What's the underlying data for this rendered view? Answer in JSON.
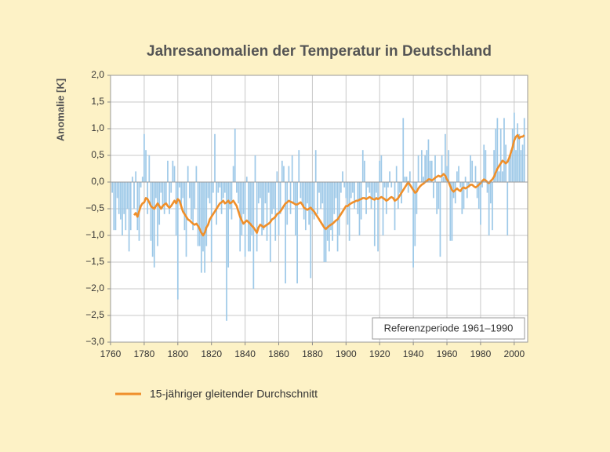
{
  "chart_data": {
    "type": "bar",
    "title": "Jahresanomalien der Temperatur in Deutschland",
    "ylabel": "Anomalie [K]",
    "annotation": "Referenzperiode 1961–1990",
    "xlim": [
      1760,
      2008
    ],
    "ylim": [
      -3,
      2
    ],
    "xticks": [
      1760,
      1780,
      1800,
      1820,
      1840,
      1860,
      1880,
      1900,
      1920,
      1940,
      1960,
      1980,
      2000
    ],
    "yticks": [
      {
        "value": 2,
        "label": "2,0"
      },
      {
        "value": 1.5,
        "label": "1,5"
      },
      {
        "value": 1,
        "label": "1,0"
      },
      {
        "value": 0.5,
        "label": "0,5"
      },
      {
        "value": 0,
        "label": "0,0"
      },
      {
        "value": -0.5,
        "label": "−0,5"
      },
      {
        "value": -1,
        "label": "−1,0"
      },
      {
        "value": -1.5,
        "label": "−1,5"
      },
      {
        "value": -2,
        "label": "−2,0"
      },
      {
        "value": -2.5,
        "label": "−2,5"
      },
      {
        "value": -3,
        "label": "−3,0"
      }
    ],
    "grid": true,
    "x": [
      1761,
      1762,
      1763,
      1764,
      1765,
      1766,
      1767,
      1768,
      1769,
      1770,
      1771,
      1772,
      1773,
      1774,
      1775,
      1776,
      1777,
      1778,
      1779,
      1780,
      1781,
      1782,
      1783,
      1784,
      1785,
      1786,
      1787,
      1788,
      1789,
      1790,
      1791,
      1792,
      1793,
      1794,
      1795,
      1796,
      1797,
      1798,
      1799,
      1800,
      1801,
      1802,
      1803,
      1804,
      1805,
      1806,
      1807,
      1808,
      1809,
      1810,
      1811,
      1812,
      1813,
      1814,
      1815,
      1816,
      1817,
      1818,
      1819,
      1820,
      1821,
      1822,
      1823,
      1824,
      1825,
      1826,
      1827,
      1828,
      1829,
      1830,
      1831,
      1832,
      1833,
      1834,
      1835,
      1836,
      1837,
      1838,
      1839,
      1840,
      1841,
      1842,
      1843,
      1844,
      1845,
      1846,
      1847,
      1848,
      1849,
      1850,
      1851,
      1852,
      1853,
      1854,
      1855,
      1856,
      1857,
      1858,
      1859,
      1860,
      1861,
      1862,
      1863,
      1864,
      1865,
      1866,
      1867,
      1868,
      1869,
      1870,
      1871,
      1872,
      1873,
      1874,
      1875,
      1876,
      1877,
      1878,
      1879,
      1880,
      1881,
      1882,
      1883,
      1884,
      1885,
      1886,
      1887,
      1888,
      1889,
      1890,
      1891,
      1892,
      1893,
      1894,
      1895,
      1896,
      1897,
      1898,
      1899,
      1900,
      1901,
      1902,
      1903,
      1904,
      1905,
      1906,
      1907,
      1908,
      1909,
      1910,
      1911,
      1912,
      1913,
      1914,
      1915,
      1916,
      1917,
      1918,
      1919,
      1920,
      1921,
      1922,
      1923,
      1924,
      1925,
      1926,
      1927,
      1928,
      1929,
      1930,
      1931,
      1932,
      1933,
      1934,
      1935,
      1936,
      1937,
      1938,
      1939,
      1940,
      1941,
      1942,
      1943,
      1944,
      1945,
      1946,
      1947,
      1948,
      1949,
      1950,
      1951,
      1952,
      1953,
      1954,
      1955,
      1956,
      1957,
      1958,
      1959,
      1960,
      1961,
      1962,
      1963,
      1964,
      1965,
      1966,
      1967,
      1968,
      1969,
      1970,
      1971,
      1972,
      1973,
      1974,
      1975,
      1976,
      1977,
      1978,
      1979,
      1980,
      1981,
      1982,
      1983,
      1984,
      1985,
      1986,
      1987,
      1988,
      1989,
      1990,
      1991,
      1992,
      1993,
      1994,
      1995,
      1996,
      1997,
      1998,
      1999,
      2000,
      2001,
      2002,
      2003,
      2004,
      2005,
      2006
    ],
    "series": [
      {
        "type": "bar",
        "color": "#9ec9e8",
        "values": [
          -0.2,
          -0.9,
          -0.9,
          -0.3,
          -0.6,
          -0.7,
          -1.0,
          -0.6,
          -0.9,
          -0.5,
          -1.3,
          -0.9,
          0.1,
          -0.5,
          0.2,
          -0.9,
          -1.1,
          -0.1,
          0.1,
          0.9,
          0.6,
          -0.6,
          0.5,
          -1.1,
          -1.4,
          -1.6,
          -0.3,
          -1.2,
          -0.8,
          -0.2,
          -0.5,
          -0.6,
          -0.4,
          0.4,
          -0.6,
          -0.2,
          0.4,
          0.3,
          -1.0,
          -2.2,
          -0.1,
          -0.5,
          -0.3,
          -0.9,
          -1.4,
          0.3,
          -0.3,
          -0.7,
          -0.9,
          -0.5,
          0.3,
          -1.2,
          -1.2,
          -1.7,
          -1.3,
          -1.7,
          -1.2,
          -0.3,
          -0.4,
          -1.5,
          -0.2,
          0.9,
          -0.8,
          -0.2,
          -0.1,
          -0.6,
          -0.3,
          -0.2,
          -2.6,
          -1.6,
          -0.5,
          -0.7,
          0.3,
          1.0,
          -0.2,
          -0.4,
          -1.3,
          -1.0,
          -0.6,
          -1.4,
          0.1,
          -1.3,
          -1.3,
          -1.0,
          -2.0,
          0.5,
          -1.3,
          -0.4,
          -0.3,
          -1.0,
          -0.9,
          -0.4,
          -1.1,
          -0.2,
          -1.5,
          -0.6,
          -0.5,
          -1.1,
          0.2,
          -1.0,
          -0.6,
          0.4,
          0.3,
          -1.9,
          -0.8,
          0.3,
          -0.6,
          0.5,
          -0.4,
          -1.0,
          -1.9,
          0.6,
          -0.3,
          -0.4,
          -0.7,
          -0.9,
          -0.4,
          -0.8,
          -1.8,
          -0.6,
          -0.7,
          0.6,
          -0.6,
          -0.2,
          -0.5,
          -0.4,
          -1.5,
          -1.5,
          -1.1,
          -1.3,
          -0.9,
          -1.1,
          -0.6,
          -0.3,
          -1.3,
          -1.0,
          -0.2,
          0.2,
          -0.1,
          -0.3,
          -0.8,
          -1.1,
          -0.3,
          -0.2,
          -0.5,
          0.0,
          -0.6,
          -1.0,
          -0.7,
          0.6,
          0.4,
          -0.6,
          -0.1,
          -0.2,
          -0.5,
          -0.3,
          -1.2,
          -0.2,
          -1.3,
          0.4,
          0.5,
          -1.0,
          -0.1,
          -0.6,
          -0.1,
          0.2,
          -0.1,
          0.0,
          -0.9,
          0.3,
          -0.5,
          -0.2,
          -0.4,
          1.2,
          0.1,
          0.1,
          -0.2,
          0.2,
          0.0,
          -1.6,
          -1.2,
          -0.6,
          0.5,
          0.0,
          0.6,
          0.1,
          0.5,
          0.6,
          0.8,
          0.4,
          0.4,
          -0.3,
          0.5,
          -0.6,
          -0.5,
          -1.4,
          0.5,
          0.1,
          0.9,
          0.3,
          0.6,
          -1.1,
          -1.1,
          -0.3,
          -0.4,
          0.2,
          0.3,
          -0.1,
          -0.6,
          -0.5,
          0.1,
          -0.3,
          -0.1,
          0.5,
          0.4,
          0.0,
          0.3,
          -0.3,
          -0.5,
          -0.8,
          -0.1,
          0.7,
          0.6,
          -0.2,
          -1.0,
          -0.4,
          -0.9,
          0.6,
          1.0,
          1.2,
          0.2,
          1.0,
          0.2,
          1.2,
          0.7,
          -1.0,
          0.5,
          0.6,
          1.0,
          1.3,
          0.6,
          1.1,
          0.9,
          0.6,
          0.7,
          1.2
        ]
      },
      {
        "type": "line",
        "name": "15-jähriger gleitender Durchschnitt",
        "color": "#ef8f2a",
        "values": [
          null,
          null,
          null,
          null,
          null,
          null,
          null,
          null,
          null,
          null,
          null,
          null,
          null,
          -0.62,
          -0.58,
          -0.65,
          -0.55,
          -0.45,
          -0.4,
          -0.38,
          -0.3,
          -0.32,
          -0.38,
          -0.45,
          -0.48,
          -0.5,
          -0.45,
          -0.4,
          -0.45,
          -0.5,
          -0.45,
          -0.42,
          -0.4,
          -0.45,
          -0.48,
          -0.45,
          -0.4,
          -0.35,
          -0.4,
          -0.32,
          -0.35,
          -0.45,
          -0.55,
          -0.6,
          -0.65,
          -0.7,
          -0.72,
          -0.75,
          -0.78,
          -0.8,
          -0.78,
          -0.82,
          -0.88,
          -0.95,
          -1.0,
          -0.95,
          -0.85,
          -0.8,
          -0.7,
          -0.65,
          -0.6,
          -0.55,
          -0.5,
          -0.45,
          -0.4,
          -0.38,
          -0.35,
          -0.4,
          -0.38,
          -0.35,
          -0.4,
          -0.38,
          -0.35,
          -0.4,
          -0.45,
          -0.55,
          -0.65,
          -0.72,
          -0.78,
          -0.75,
          -0.72,
          -0.75,
          -0.78,
          -0.82,
          -0.85,
          -0.9,
          -0.95,
          -0.85,
          -0.8,
          -0.82,
          -0.85,
          -0.82,
          -0.8,
          -0.78,
          -0.75,
          -0.7,
          -0.68,
          -0.65,
          -0.6,
          -0.58,
          -0.55,
          -0.5,
          -0.45,
          -0.4,
          -0.38,
          -0.35,
          -0.37,
          -0.38,
          -0.4,
          -0.42,
          -0.42,
          -0.4,
          -0.38,
          -0.42,
          -0.48,
          -0.5,
          -0.52,
          -0.5,
          -0.48,
          -0.52,
          -0.55,
          -0.6,
          -0.65,
          -0.7,
          -0.75,
          -0.8,
          -0.85,
          -0.88,
          -0.85,
          -0.82,
          -0.8,
          -0.78,
          -0.75,
          -0.72,
          -0.7,
          -0.65,
          -0.6,
          -0.55,
          -0.5,
          -0.45,
          -0.45,
          -0.42,
          -0.4,
          -0.38,
          -0.37,
          -0.35,
          -0.35,
          -0.33,
          -0.32,
          -0.3,
          -0.3,
          -0.32,
          -0.3,
          -0.28,
          -0.3,
          -0.32,
          -0.33,
          -0.3,
          -0.32,
          -0.3,
          -0.28,
          -0.3,
          -0.32,
          -0.35,
          -0.33,
          -0.3,
          -0.28,
          -0.3,
          -0.35,
          -0.33,
          -0.3,
          -0.25,
          -0.2,
          -0.15,
          -0.1,
          -0.05,
          0.0,
          -0.05,
          -0.1,
          -0.15,
          -0.2,
          -0.18,
          -0.12,
          -0.08,
          -0.05,
          -0.03,
          0.0,
          0.02,
          0.05,
          0.05,
          0.03,
          0.05,
          0.08,
          0.1,
          0.12,
          0.1,
          0.12,
          0.15,
          0.12,
          0.05,
          0.0,
          -0.08,
          -0.15,
          -0.18,
          -0.15,
          -0.12,
          -0.15,
          -0.17,
          -0.12,
          -0.1,
          -0.12,
          -0.1,
          -0.08,
          -0.05,
          -0.05,
          -0.08,
          -0.1,
          -0.08,
          -0.05,
          -0.02,
          0.02,
          0.05,
          0.03,
          0.0,
          -0.02,
          0.02,
          0.05,
          0.1,
          0.18,
          0.25,
          0.3,
          0.35,
          0.4,
          0.38,
          0.35,
          0.38,
          0.45,
          0.55,
          0.65,
          0.78,
          0.85,
          0.88,
          0.82,
          0.85,
          0.85,
          0.88
        ]
      }
    ]
  }
}
